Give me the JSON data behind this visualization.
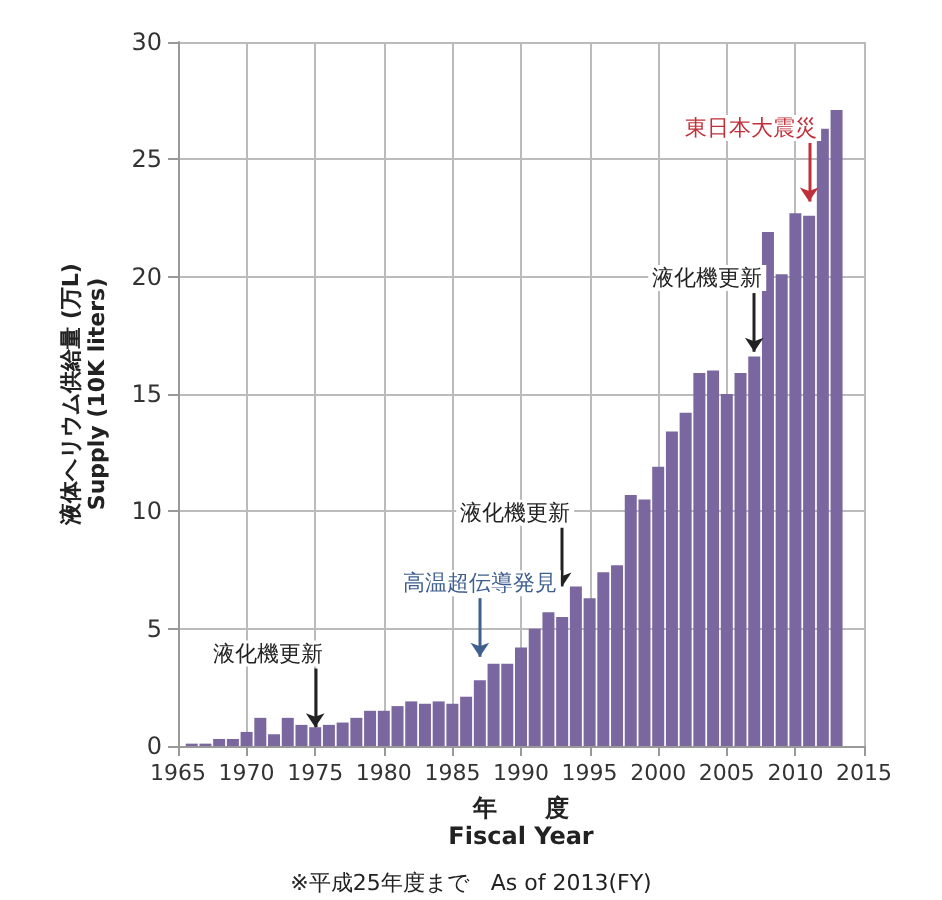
{
  "chart_data": {
    "type": "bar",
    "xlabel": "年　　度\nFiscal Year",
    "ylabel": "液体ヘリウム供給量 (万L)\nSupply (10K liters)",
    "x": [
      1966,
      1967,
      1968,
      1969,
      1970,
      1971,
      1972,
      1973,
      1974,
      1975,
      1976,
      1977,
      1978,
      1979,
      1980,
      1981,
      1982,
      1983,
      1984,
      1985,
      1986,
      1987,
      1988,
      1989,
      1990,
      1991,
      1992,
      1993,
      1994,
      1995,
      1996,
      1997,
      1998,
      1999,
      2000,
      2001,
      2002,
      2003,
      2004,
      2005,
      2006,
      2007,
      2008,
      2009,
      2010,
      2011,
      2012,
      2013
    ],
    "values": [
      0.1,
      0.1,
      0.3,
      0.3,
      0.6,
      1.2,
      0.5,
      1.2,
      0.9,
      0.8,
      0.9,
      1.0,
      1.2,
      1.5,
      1.5,
      1.7,
      1.9,
      1.8,
      1.9,
      1.8,
      2.1,
      2.8,
      3.5,
      3.5,
      4.2,
      5.0,
      5.7,
      5.5,
      6.8,
      6.3,
      7.4,
      7.7,
      10.7,
      10.5,
      11.9,
      13.4,
      14.2,
      15.9,
      16.0,
      15.0,
      15.9,
      16.6,
      21.9,
      20.1,
      22.7,
      22.6,
      26.3,
      27.1
    ],
    "color": "#7b67a0",
    "xlim": [
      1965,
      2015
    ],
    "xticks": [
      1965,
      1970,
      1975,
      1980,
      1985,
      1990,
      1995,
      2000,
      2005,
      2010,
      2015
    ],
    "ylim": [
      0,
      30
    ],
    "yticks": [
      0,
      5,
      10,
      15,
      20,
      25,
      30
    ],
    "grid": true,
    "annotations": [
      {
        "text": "液化機更新",
        "x": 1975,
        "y": 0.8
      },
      {
        "text": "高温超伝導発見",
        "x": 1987,
        "y": 3.8
      },
      {
        "text": "液化機更新",
        "x": 1993,
        "y": 6.8
      },
      {
        "text": "液化機更新",
        "x": 2007,
        "y": 16.8
      },
      {
        "text": "東日本大震災",
        "x": 2011,
        "y": 23.2
      },
      "※平成25年度まで　As of 2013(FY)"
    ]
  }
}
